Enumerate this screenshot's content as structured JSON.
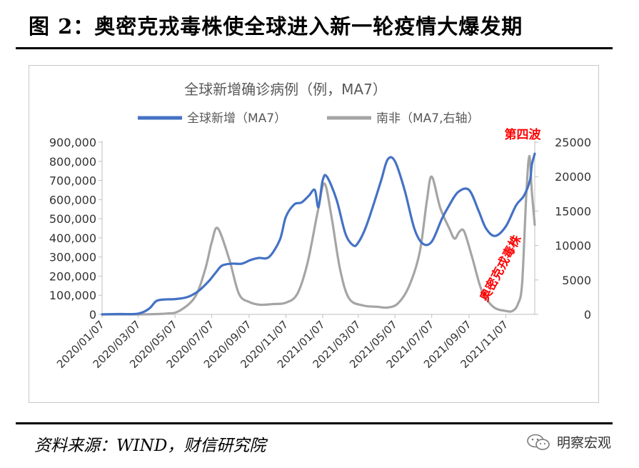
{
  "figure_title": "图 2：奥密克戎毒株使全球进入新一轮疫情大爆发期",
  "source": "资料来源：WIND，财信研究院",
  "watermark": "明察宏观",
  "colors": {
    "global_line": "#4472C4",
    "south_africa_line": "#A5A5A5",
    "annotation": "#FF0000"
  },
  "chart_data": {
    "type": "line",
    "title": "全球新增确诊病例（例，MA7）",
    "x_tick_labels": [
      "2020/01/07",
      "2020/03/07",
      "2020/05/07",
      "2020/07/07",
      "2020/09/07",
      "2020/11/07",
      "2021/01/07",
      "2021/03/07",
      "2021/05/07",
      "2021/07/07",
      "2021/09/07",
      "2021/11/07"
    ],
    "x_range": [
      "2020/01/07",
      "2021/12/25"
    ],
    "y_left": {
      "min": 0,
      "max": 900000,
      "ticks": [
        "0",
        "100,000",
        "200,000",
        "300,000",
        "400,000",
        "500,000",
        "600,000",
        "700,000",
        "800,000",
        "900,000"
      ]
    },
    "y_right": {
      "min": 0,
      "max": 25000,
      "ticks": [
        "0",
        "5000",
        "10000",
        "15000",
        "20000",
        "25000"
      ]
    },
    "legend_position": "top",
    "series": [
      {
        "name": "全球新增（MA7）",
        "axis": "left",
        "points": [
          [
            "2020/01/07",
            0
          ],
          [
            "2020/02/06",
            2000
          ],
          [
            "2020/03/07",
            4000
          ],
          [
            "2020/03/25",
            30000
          ],
          [
            "2020/04/06",
            70000
          ],
          [
            "2020/04/20",
            78000
          ],
          [
            "2020/05/07",
            80000
          ],
          [
            "2020/05/27",
            90000
          ],
          [
            "2020/06/14",
            120000
          ],
          [
            "2020/07/01",
            170000
          ],
          [
            "2020/07/14",
            220000
          ],
          [
            "2020/07/24",
            255000
          ],
          [
            "2020/08/09",
            265000
          ],
          [
            "2020/08/26",
            265000
          ],
          [
            "2020/09/10",
            285000
          ],
          [
            "2020/09/23",
            295000
          ],
          [
            "2020/10/10",
            300000
          ],
          [
            "2020/10/28",
            390000
          ],
          [
            "2020/11/07",
            510000
          ],
          [
            "2020/11/21",
            575000
          ],
          [
            "2020/12/03",
            585000
          ],
          [
            "2020/12/15",
            620000
          ],
          [
            "2020/12/25",
            650000
          ],
          [
            "2020/12/31",
            560000
          ],
          [
            "2021/01/07",
            700000
          ],
          [
            "2021/01/14",
            720000
          ],
          [
            "2021/01/30",
            600000
          ],
          [
            "2021/02/14",
            420000
          ],
          [
            "2021/02/27",
            360000
          ],
          [
            "2021/03/07",
            375000
          ],
          [
            "2021/03/19",
            450000
          ],
          [
            "2021/03/31",
            560000
          ],
          [
            "2021/04/14",
            700000
          ],
          [
            "2021/04/25",
            810000
          ],
          [
            "2021/05/07",
            800000
          ],
          [
            "2021/05/23",
            650000
          ],
          [
            "2021/06/08",
            450000
          ],
          [
            "2021/06/22",
            370000
          ],
          [
            "2021/07/07",
            380000
          ],
          [
            "2021/07/24",
            500000
          ],
          [
            "2021/08/05",
            570000
          ],
          [
            "2021/08/20",
            640000
          ],
          [
            "2021/09/07",
            650000
          ],
          [
            "2021/09/23",
            540000
          ],
          [
            "2021/10/05",
            450000
          ],
          [
            "2021/10/20",
            410000
          ],
          [
            "2021/11/07",
            460000
          ],
          [
            "2021/11/24",
            570000
          ],
          [
            "2021/12/07",
            620000
          ],
          [
            "2021/12/17",
            700000
          ],
          [
            "2021/12/20",
            780000
          ],
          [
            "2021/12/25",
            840000
          ]
        ]
      },
      {
        "name": "南非（MA7,右轴）",
        "axis": "right",
        "points": [
          [
            "2020/01/07",
            0
          ],
          [
            "2020/03/07",
            0
          ],
          [
            "2020/04/21",
            100
          ],
          [
            "2020/05/14",
            500
          ],
          [
            "2020/06/09",
            2500
          ],
          [
            "2020/06/26",
            6500
          ],
          [
            "2020/07/07",
            10500
          ],
          [
            "2020/07/17",
            12500
          ],
          [
            "2020/08/05",
            8000
          ],
          [
            "2020/08/21",
            3000
          ],
          [
            "2020/09/07",
            1800
          ],
          [
            "2020/09/25",
            1400
          ],
          [
            "2020/10/17",
            1500
          ],
          [
            "2020/11/07",
            1700
          ],
          [
            "2020/11/26",
            3000
          ],
          [
            "2020/12/13",
            7500
          ],
          [
            "2020/12/30",
            15000
          ],
          [
            "2021/01/10",
            19000
          ],
          [
            "2021/01/22",
            14000
          ],
          [
            "2021/02/05",
            6500
          ],
          [
            "2021/02/20",
            2300
          ],
          [
            "2021/03/15",
            1300
          ],
          [
            "2021/04/08",
            1100
          ],
          [
            "2021/04/25",
            1000
          ],
          [
            "2021/05/12",
            1600
          ],
          [
            "2021/05/30",
            4000
          ],
          [
            "2021/06/17",
            9000
          ],
          [
            "2021/06/29",
            16500
          ],
          [
            "2021/07/07",
            20000
          ],
          [
            "2021/07/21",
            15500
          ],
          [
            "2021/08/05",
            12500
          ],
          [
            "2021/08/14",
            11000
          ],
          [
            "2021/08/22",
            12000
          ],
          [
            "2021/08/30",
            12000
          ],
          [
            "2021/09/13",
            8000
          ],
          [
            "2021/09/28",
            3500
          ],
          [
            "2021/10/17",
            1100
          ],
          [
            "2021/11/07",
            500
          ],
          [
            "2021/11/18",
            500
          ],
          [
            "2021/11/27",
            1500
          ],
          [
            "2021/12/04",
            4500
          ],
          [
            "2021/12/11",
            17500
          ],
          [
            "2021/12/16",
            23000
          ],
          [
            "2021/12/20",
            18000
          ],
          [
            "2021/12/25",
            13000
          ]
        ]
      }
    ],
    "annotations": [
      {
        "text": "第四波",
        "anchor": "2021/12/25"
      },
      {
        "text": "奥密克戎毒株",
        "anchor": "2021/11/24"
      }
    ]
  }
}
